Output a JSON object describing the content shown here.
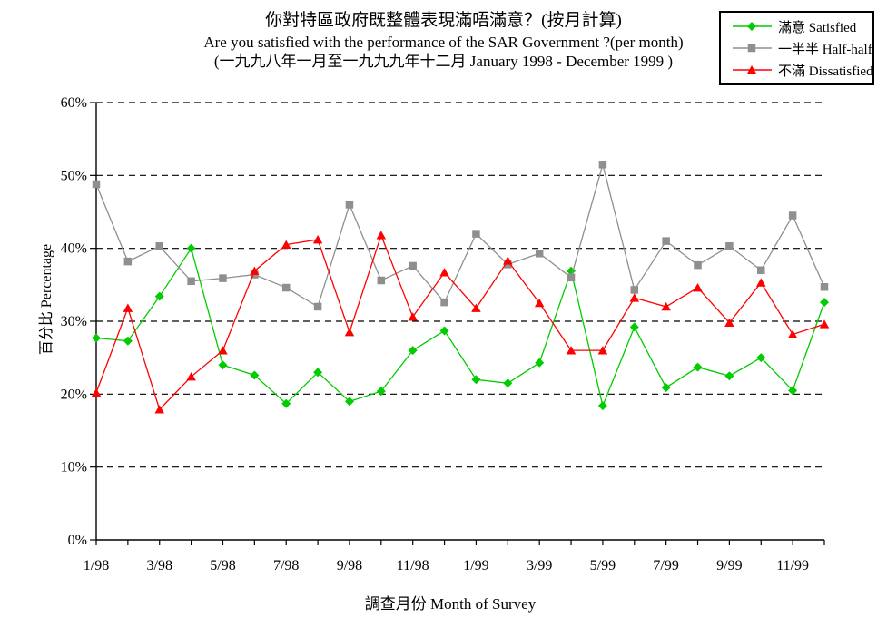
{
  "chart_data": {
    "type": "line",
    "title": "你對特區政府既整體表現滿唔滿意？(按月計算)",
    "subtitle": "Are you satisfied with the performance of the SAR Government ?(per month)",
    "period": "(一九九八年一月至一九九九年十二月 January 1998 - December 1999 )",
    "xlabel": "調查月份 Month of Survey",
    "ylabel": "百分比 Percentage",
    "ylim": [
      0,
      60
    ],
    "y_tick_labels": [
      "0%",
      "10%",
      "20%",
      "30%",
      "40%",
      "50%",
      "60%"
    ],
    "categories": [
      "1/98",
      "2/98",
      "3/98",
      "4/98",
      "5/98",
      "6/98",
      "7/98",
      "8/98",
      "9/98",
      "10/98",
      "11/98",
      "12/98",
      "1/99",
      "2/99",
      "3/99",
      "4/99",
      "5/99",
      "6/99",
      "7/99",
      "8/99",
      "9/99",
      "10/99",
      "11/99",
      "12/99"
    ],
    "x_tick_labels_shown": [
      "1/98",
      "3/98",
      "5/98",
      "7/98",
      "9/98",
      "11/98",
      "1/99",
      "3/99",
      "5/99",
      "7/99",
      "9/99",
      "11/99"
    ],
    "grid": "horizontal-dashed",
    "legend_position": "top-right",
    "series": [
      {
        "id": "satisfied",
        "name": "滿意 Satisfied",
        "color": "#00CC00",
        "marker": "diamond",
        "values": [
          27.7,
          27.3,
          33.4,
          40.0,
          24.0,
          22.6,
          18.7,
          23.0,
          19.0,
          20.4,
          26.0,
          28.7,
          22.0,
          21.5,
          24.3,
          36.9,
          18.4,
          29.2,
          20.9,
          23.7,
          22.5,
          25.0,
          20.5,
          32.6
        ]
      },
      {
        "id": "half-half",
        "name": "一半半 Half-half",
        "color": "#8F8F8F",
        "marker": "square",
        "values": [
          48.8,
          38.2,
          40.3,
          35.5,
          35.9,
          36.4,
          34.6,
          32.0,
          46.0,
          35.6,
          37.6,
          32.6,
          42.0,
          37.8,
          39.3,
          36.0,
          51.5,
          34.3,
          41.0,
          37.7,
          40.3,
          37.0,
          44.5,
          34.7
        ]
      },
      {
        "id": "dissatisfied",
        "name": "不滿 Dissatisfied",
        "color": "#FF0000",
        "marker": "triangle",
        "values": [
          20.2,
          31.8,
          17.9,
          22.4,
          26.0,
          36.9,
          40.5,
          41.2,
          28.5,
          41.8,
          30.6,
          36.7,
          31.8,
          38.3,
          32.5,
          26.0,
          26.0,
          33.2,
          32.0,
          34.6,
          29.8,
          35.3,
          28.2,
          29.6
        ]
      }
    ]
  },
  "colors": {
    "axis": "#000000",
    "text": "#000000",
    "background": "#FFFFFF"
  }
}
